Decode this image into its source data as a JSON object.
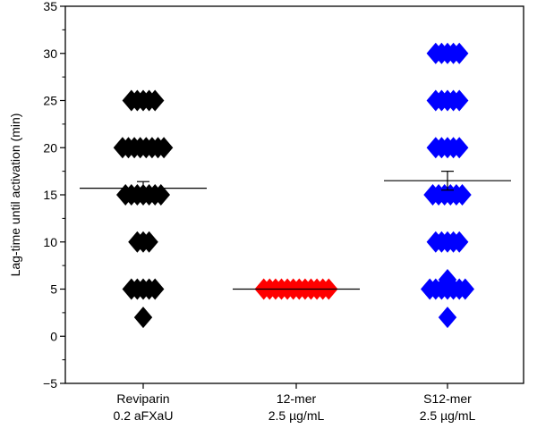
{
  "chart_data": {
    "type": "scatter",
    "ylabel": "Lag-time until activation (min)",
    "ylim": [
      -5,
      35
    ],
    "y_major_ticks": [
      -5,
      0,
      5,
      10,
      15,
      20,
      25,
      30,
      35
    ],
    "y_tick_labels": [
      "−5",
      "0",
      "5",
      "10",
      "15",
      "20",
      "25",
      "30",
      "35"
    ],
    "groups": [
      {
        "label_line1": "Reviparin",
        "label_line2": "0.2 aFXaU",
        "color": "#000000",
        "mean": 15.7,
        "sem": 0.7,
        "rows": [
          {
            "y": 25,
            "n": 5
          },
          {
            "y": 20,
            "n": 8
          },
          {
            "y": 15,
            "n": 7
          },
          {
            "y": 10,
            "n": 3
          },
          {
            "y": 5,
            "n": 5
          },
          {
            "y": 2,
            "n": 1
          }
        ]
      },
      {
        "label_line1": "12-mer",
        "label_line2": "2.5 µg/mL",
        "color": "#ff0000",
        "mean": 5.0,
        "sem": 0.0,
        "rows": [
          {
            "y": 5,
            "n": 12
          }
        ]
      },
      {
        "label_line1": "S12-mer",
        "label_line2": "2.5 µg/mL",
        "color": "#0000ff",
        "mean": 16.5,
        "sem": 1.0,
        "rows": [
          {
            "y": 30,
            "n": 5
          },
          {
            "y": 25,
            "n": 5
          },
          {
            "y": 20,
            "n": 5
          },
          {
            "y": 15,
            "n": 6
          },
          {
            "y": 10,
            "n": 5
          },
          {
            "y": 6,
            "n": 1
          },
          {
            "y": 5,
            "n": 7
          },
          {
            "y": 2,
            "n": 1
          }
        ]
      }
    ]
  }
}
